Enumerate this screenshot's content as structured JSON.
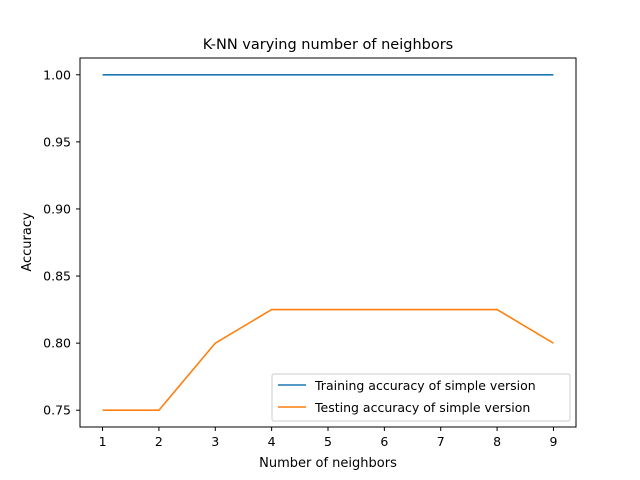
{
  "chart_data": {
    "type": "line",
    "title": "K-NN varying number of neighbors",
    "xlabel": "Number of neighbors",
    "ylabel": "Accuracy",
    "x": [
      1,
      2,
      3,
      4,
      5,
      6,
      7,
      8,
      9
    ],
    "xticks": [
      "1",
      "2",
      "3",
      "4",
      "5",
      "6",
      "7",
      "8",
      "9"
    ],
    "yticks": [
      0.75,
      0.8,
      0.85,
      0.9,
      0.95,
      1.0
    ],
    "ytick_labels": [
      "0.75",
      "0.80",
      "0.85",
      "0.90",
      "0.95",
      "1.00"
    ],
    "xlim": [
      0.6,
      9.4
    ],
    "ylim": [
      0.7375,
      1.0125
    ],
    "grid": false,
    "legend_position": "lower-right",
    "series": [
      {
        "name": "Training accuracy of simple version",
        "color": "#1f77b4",
        "values": [
          1.0,
          1.0,
          1.0,
          1.0,
          1.0,
          1.0,
          1.0,
          1.0,
          1.0
        ]
      },
      {
        "name": "Testing accuracy of simple version",
        "color": "#ff7f0e",
        "values": [
          0.75,
          0.75,
          0.8,
          0.825,
          0.825,
          0.825,
          0.825,
          0.825,
          0.8
        ]
      }
    ]
  }
}
